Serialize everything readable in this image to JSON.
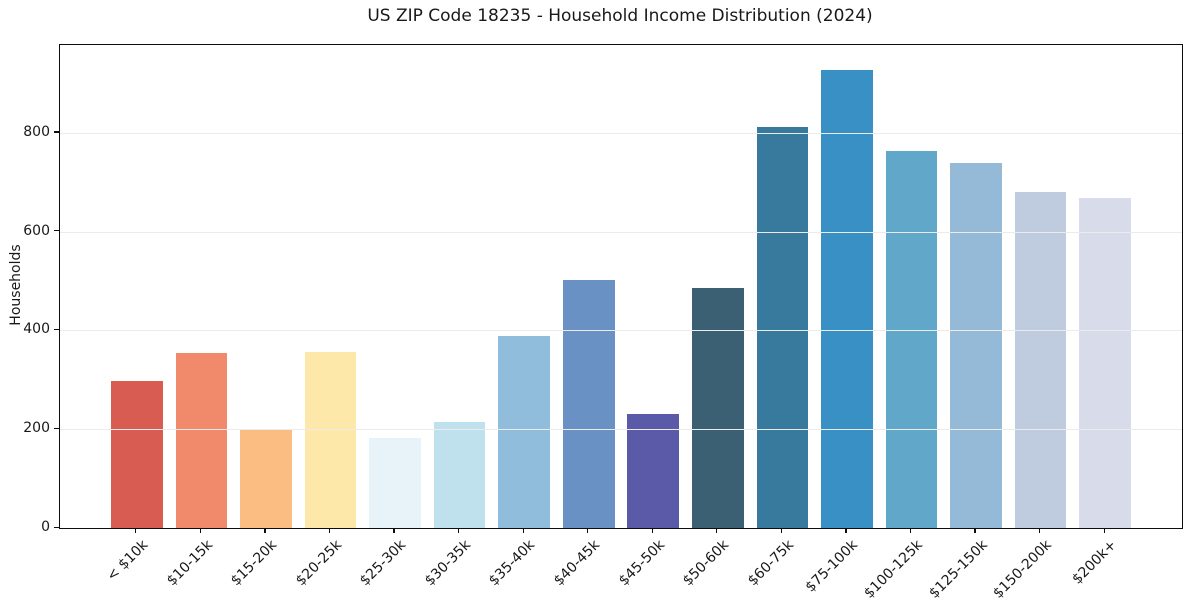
{
  "chart_data": {
    "type": "bar",
    "title": "US ZIP Code 18235 - Household Income Distribution (2024)",
    "xlabel": "",
    "ylabel": "Households",
    "categories": [
      "< $10k",
      "$10-15k",
      "$15-20k",
      "$20-25k",
      "$25-30k",
      "$30-35k",
      "$35-40k",
      "$40-45k",
      "$45-50k",
      "$50-60k",
      "$60-75k",
      "$75-100k",
      "$100-125k",
      "$125-150k",
      "$150-200k",
      "$200k+"
    ],
    "values": [
      297,
      355,
      198,
      357,
      183,
      215,
      388,
      502,
      231,
      485,
      813,
      928,
      763,
      739,
      681,
      669
    ],
    "bar_colors": [
      "#d85c52",
      "#f1896b",
      "#fcbd82",
      "#fde8a9",
      "#e7f3f8",
      "#bfe1ed",
      "#91bddd",
      "#6991c3",
      "#5b5aa8",
      "#3b6074",
      "#377a9e",
      "#3990c4",
      "#61a7ca",
      "#94bad8",
      "#bfccdf",
      "#d8dbe9"
    ],
    "yticks": [
      0,
      200,
      400,
      600,
      800
    ],
    "ylim": [
      0,
      978
    ],
    "grid": true,
    "grid_position": "above-bars",
    "legend": "none",
    "colors": {
      "background": "#ffffff",
      "gridline": "#ebebeb",
      "spine": "#0d0d0d",
      "text": "#191919"
    }
  }
}
